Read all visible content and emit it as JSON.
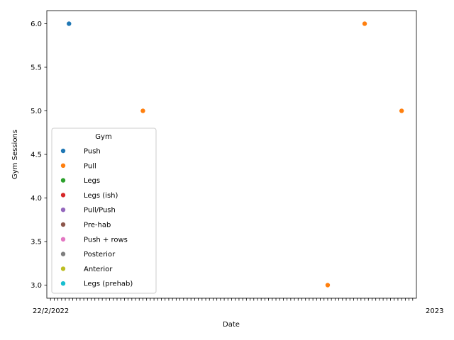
{
  "chart_data": {
    "type": "scatter",
    "xlabel": "Date",
    "ylabel": "Gym Sessions",
    "ylim": [
      2.85,
      6.15
    ],
    "yticks": [
      3.0,
      3.5,
      4.0,
      4.5,
      5.0,
      5.5,
      6.0
    ],
    "x_categories_count": 99,
    "x_tick_text_left": "22/2/2022",
    "x_tick_text_right": "2023",
    "grid": false,
    "legend": {
      "title": "Gym",
      "placement": "lower-left",
      "entries": [
        {
          "label": "Push",
          "color": "#1f77b4"
        },
        {
          "label": "Pull",
          "color": "#ff7f0e"
        },
        {
          "label": "Legs",
          "color": "#2ca02c"
        },
        {
          "label": "Legs (ish)",
          "color": "#d62728"
        },
        {
          "label": "Pull/Push",
          "color": "#9467bd"
        },
        {
          "label": "Pre-hab",
          "color": "#8c564b"
        },
        {
          "label": "Push + rows",
          "color": "#e377c2"
        },
        {
          "label": "Posterior",
          "color": "#7f7f7f"
        },
        {
          "label": "Anterior",
          "color": "#bcbd22"
        },
        {
          "label": "Legs (prehab)",
          "color": "#17becf"
        }
      ]
    },
    "points": [
      {
        "x_index": 5,
        "y": 6,
        "series": "Push"
      },
      {
        "x_index": 25,
        "y": 5,
        "series": "Pull"
      },
      {
        "x_index": 75,
        "y": 3,
        "series": "Pull"
      },
      {
        "x_index": 85,
        "y": 6,
        "series": "Pull"
      },
      {
        "x_index": 95,
        "y": 5,
        "series": "Pull"
      }
    ]
  }
}
